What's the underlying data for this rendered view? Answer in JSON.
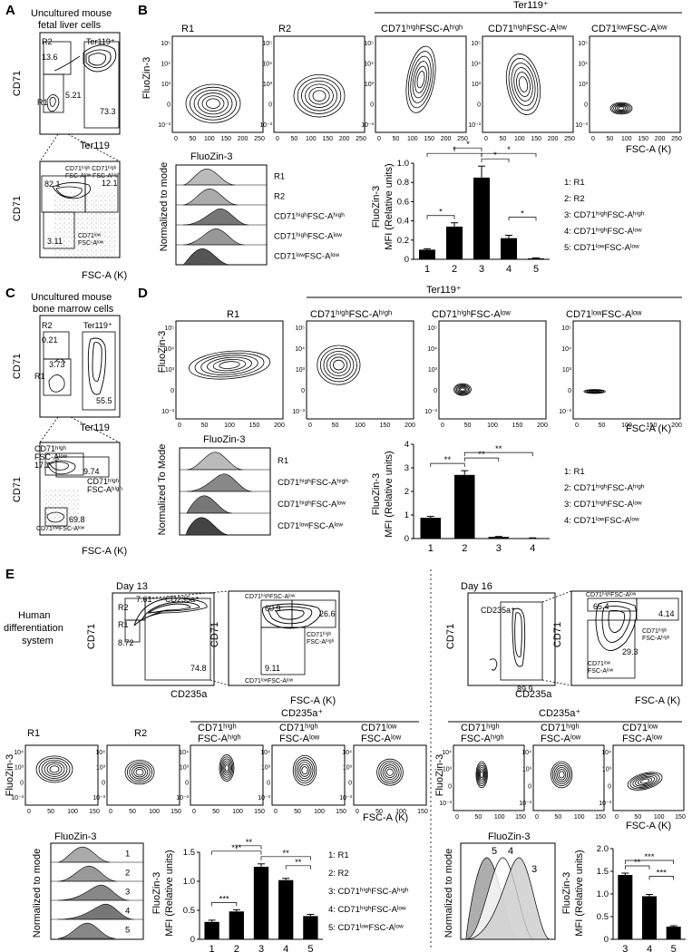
{
  "panel_letters": [
    "A",
    "B",
    "C",
    "D",
    "E"
  ],
  "titles": {
    "a": "Uncultured mouse fetal liver cells",
    "c": "Uncultured mouse bone marrow cells",
    "e_system": "Human differentiation system",
    "day13": "Day 13",
    "day16": "Day 16"
  },
  "axes": {
    "cd71": "CD71",
    "ter119": "Ter119",
    "fscak": "FSC-A (K)",
    "fluozin": "FluoZin-3",
    "cd235a": "CD235a",
    "normmode": "Normalized to mode",
    "normmode_cap": "Normalized To Mode",
    "mfi": "MFI (Relative units)"
  },
  "headers": {
    "ter119pos": "Ter119⁺",
    "cd235apos": "CD235a⁺",
    "r1": "R1",
    "r2": "R2",
    "hh": "CD71ʰⁱᵍʰFSC-Aʰⁱᵍʰ",
    "hl": "CD71ʰⁱᵍʰFSC-Aˡᵒʷ",
    "ll": "CD71ˡᵒʷFSC-Aˡᵒʷ",
    "e_hh_1": "CD71ʰⁱᵍʰ",
    "e_hh_2": "FSC-Aʰⁱᵍʰ",
    "e_hl_1": "CD71ʰⁱᵍʰ",
    "e_hl_2": "FSC-Aˡᵒʷ",
    "e_ll_1": "CD71ˡᵒʷ",
    "e_ll_2": "FSC-Aˡᵒʷ"
  },
  "gates": {
    "a_r1": "R1",
    "a_r2": "R2",
    "a_ter": "Ter119⁺",
    "a_v1": "13.6",
    "a_v2": "5.21",
    "a_v3": "73.3",
    "a2_v1": "82.1",
    "a2_v2": "12.1",
    "a2_v3": "3.11",
    "a2_hh": "CD71ʰⁱᵍʰ FSC-Aʰⁱᵍʰ",
    "a2_ll1": "CD71ˡᵒʷ",
    "a2_ll2": "FSC-Aˡᵒʷ",
    "c_v1": "0.21",
    "c_v2": "3.73",
    "c_v3": "55.5",
    "c2_v1": "17.2",
    "c2_v2": "9.74",
    "c2_v3": "69.8",
    "c2_hl1": "CD71ʰⁱᵍʰ",
    "c2_hl2": "FSC-Aˡᵒʷ",
    "c2_hh1": "CD71ʰⁱᵍʰ",
    "c2_hh2": "FSC-Aʰⁱᵍʰ",
    "c2_ll": "CD71ˡᵒʷFSC-Aˡᵒʷ",
    "e13_r1": "R1",
    "e13_r2": "R2",
    "e13_cd": "CD235a⁺",
    "e13_v1": "7.61",
    "e13_v2": "8.72",
    "e13_v3": "74.8",
    "e13b_v1": "60.9",
    "e13b_v2": "26.6",
    "e13b_v3": "9.11",
    "e13b_hl": "CD71ʰⁱᵍʰFSC-Aˡᵒʷ",
    "e13b_hh1": "CD71ʰⁱᵍʰ",
    "e13b_hh2": "FSC-Aʰⁱᵍʰ",
    "e13b_ll": "CD71ˡᵒʷFSC-Aˡᵒʷ",
    "e16_cd": "CD235a⁺",
    "e16_v1": "89.9",
    "e16b_v1": "65.4",
    "e16b_v2": "4.14",
    "e16b_v3": "29.3",
    "e16b_hl": "CD71ʰⁱᵍʰFSC-Aˡᵒʷ",
    "e16b_hh1": "CD71ʰⁱᵍʰ",
    "e16b_hh2": "FSC-Aʰⁱᵍʰ",
    "e16b_ll1": "CD71ˡᵒʷ",
    "e16b_ll2": "FSC-Aˡᵒʷ"
  },
  "ticks": {
    "log5": [
      "10⁻³",
      "0",
      "10³",
      "10⁴",
      "10⁵"
    ],
    "log4": [
      "10⁻³",
      "0",
      "10³",
      "10⁴"
    ],
    "fsc250": [
      "0",
      "50",
      "100",
      "150",
      "200",
      "250"
    ],
    "fsc200": [
      "0",
      "50",
      "100",
      "150",
      "200"
    ],
    "fsc150": [
      "0",
      "50",
      "100",
      "150"
    ]
  },
  "hist_labels": {
    "b": [
      "R1",
      "R2",
      "CD71ʰⁱᵍʰFSC-Aʰⁱᵍʰ",
      "CD71ʰⁱᵍʰFSC-Aˡᵒʷ",
      "CD71ˡᵒʷFSC-Aˡᵒʷ"
    ],
    "d": [
      "R1",
      "CD71ʰⁱᵍʰFSC-Aʰⁱᵍʰ",
      "CD71ʰⁱᵍʰFSC-Aˡᵒʷ",
      "CD71ˡᵒʷFSC-Aˡᵒʷ"
    ],
    "e13": [
      "1",
      "2",
      "3",
      "4",
      "5"
    ],
    "e16": [
      "5",
      "4",
      "3"
    ]
  },
  "legends": {
    "b": [
      "1: R1",
      "2: R2",
      "3: CD71ʰⁱᵍʰFSC-Aʰⁱᵍʰ",
      "4: CD71ʰⁱᵍʰFSC-Aˡᵒʷ",
      "5: CD71ˡᵒʷFSC-Aˡᵒʷ"
    ],
    "d": [
      "1: R1",
      "2: CD71ʰⁱᵍʰFSC-Aʰⁱᵍʰ",
      "3: CD71ʰⁱᵍʰFSC-Aˡᵒʷ",
      "4: CD71ˡᵒʷFSC-Aˡᵒʷ"
    ],
    "e": [
      "1: R1",
      "2: R2",
      "3: CD71ʰⁱᵍʰFSC-Aʰⁱᵍʰ",
      "4: CD71ʰⁱᵍʰFSC-Aˡᵒʷ",
      "5: CD71ˡᵒʷFSC-Aˡᵒʷ"
    ]
  },
  "chart_data": [
    {
      "type": "bar",
      "panel": "B",
      "categories": [
        "1",
        "2",
        "3",
        "4",
        "5"
      ],
      "values": [
        0.1,
        0.34,
        0.85,
        0.22,
        0.01
      ],
      "errors": [
        0.01,
        0.04,
        0.12,
        0.03,
        0.005
      ],
      "ylim": [
        0,
        1.0
      ],
      "yticks": [
        "0",
        "0.2",
        "0.4",
        "0.6",
        "0.8",
        "1.0"
      ],
      "ylabel": "FluoZin-3 MFI (Relative units)",
      "significance": [
        {
          "from": 1,
          "to": 2,
          "label": "*"
        },
        {
          "from": 1,
          "to": 3,
          "label": "*"
        },
        {
          "from": 2,
          "to": 3,
          "label": "*"
        },
        {
          "from": 3,
          "to": 4,
          "label": "*"
        },
        {
          "from": 3,
          "to": 5,
          "label": "*"
        },
        {
          "from": 4,
          "to": 5,
          "label": "*"
        }
      ]
    },
    {
      "type": "bar",
      "panel": "D",
      "categories": [
        "1",
        "2",
        "3",
        "4"
      ],
      "values": [
        0.88,
        2.7,
        0.07,
        0.02
      ],
      "errors": [
        0.06,
        0.18,
        0.02,
        0.01
      ],
      "ylim": [
        0,
        4
      ],
      "yticks": [
        "0",
        "1",
        "2",
        "3",
        "4"
      ],
      "ylabel": "FluoZin-3 MFI (Relative units)",
      "significance": [
        {
          "from": 1,
          "to": 2,
          "label": "**"
        },
        {
          "from": 2,
          "to": 3,
          "label": "**"
        },
        {
          "from": 2,
          "to": 4,
          "label": "**"
        }
      ]
    },
    {
      "type": "bar",
      "panel": "E-Day13",
      "categories": [
        "1",
        "2",
        "3",
        "4",
        "5"
      ],
      "values": [
        0.3,
        0.48,
        1.25,
        1.02,
        0.4
      ],
      "errors": [
        0.03,
        0.03,
        0.05,
        0.03,
        0.03
      ],
      "ylim": [
        0,
        1.5
      ],
      "yticks": [
        "0",
        "0.5",
        "1.0",
        "1.5"
      ],
      "ylabel": "FluoZin-3 MFI (Relative units)",
      "significance": [
        {
          "from": 1,
          "to": 2,
          "label": "***"
        },
        {
          "from": 1,
          "to": 3,
          "label": "***"
        },
        {
          "from": 2,
          "to": 3,
          "label": "**"
        },
        {
          "from": 3,
          "to": 5,
          "label": "**"
        },
        {
          "from": 4,
          "to": 5,
          "label": "**"
        }
      ]
    },
    {
      "type": "bar",
      "panel": "E-Day16",
      "categories": [
        "3",
        "4",
        "5"
      ],
      "values": [
        1.42,
        0.95,
        0.28
      ],
      "errors": [
        0.04,
        0.04,
        0.02
      ],
      "ylim": [
        0,
        2.0
      ],
      "yticks": [
        "0",
        "0.5",
        "1.0",
        "1.5",
        "2.0"
      ],
      "ylabel": "FluoZin-3 MFI (Relative units)",
      "significance": [
        {
          "from": 1,
          "to": 2,
          "label": "**"
        },
        {
          "from": 1,
          "to": 3,
          "label": "***"
        },
        {
          "from": 2,
          "to": 3,
          "label": "***"
        }
      ]
    }
  ]
}
